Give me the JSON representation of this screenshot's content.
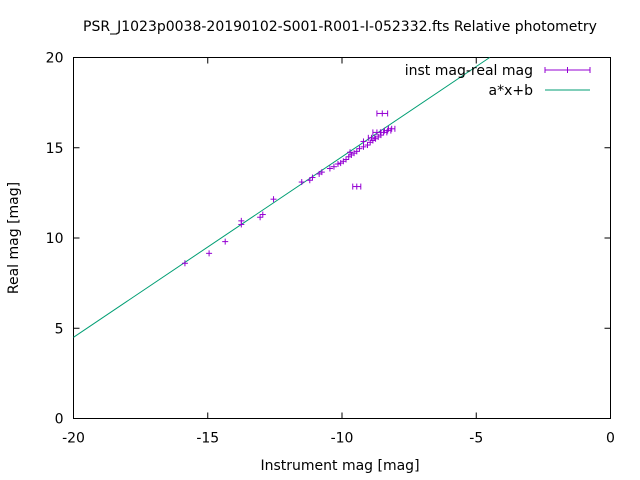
{
  "chart_data": {
    "type": "scatter",
    "title": "PSR_J1023p0038-20190102-S001-R001-I-052332.fts Relative photometry",
    "xlabel": "Instrument mag [mag]",
    "ylabel": "Real mag [mag]",
    "xlim": [
      -20,
      0
    ],
    "ylim": [
      0,
      20
    ],
    "x_ticks": [
      "-20",
      "-15",
      "-10",
      "-5",
      "0"
    ],
    "y_ticks": [
      "0",
      "5",
      "10",
      "15",
      "20"
    ],
    "grid": false,
    "legend_position": "top-right",
    "series": [
      {
        "name": "inst mag-real mag",
        "kind": "points-with-xerrorbars",
        "color": "#9400d3",
        "points": [
          {
            "x": -15.85,
            "y": 8.6,
            "xerr": 0.06
          },
          {
            "x": -14.95,
            "y": 9.15,
            "xerr": 0.06
          },
          {
            "x": -14.35,
            "y": 9.8,
            "xerr": 0.06
          },
          {
            "x": -13.75,
            "y": 10.75,
            "xerr": 0.06
          },
          {
            "x": -13.75,
            "y": 10.95,
            "xerr": 0.06
          },
          {
            "x": -13.05,
            "y": 11.15,
            "xerr": 0.07
          },
          {
            "x": -12.95,
            "y": 11.3,
            "xerr": 0.06
          },
          {
            "x": -12.55,
            "y": 12.15,
            "xerr": 0.06
          },
          {
            "x": -11.5,
            "y": 13.1,
            "xerr": 0.06
          },
          {
            "x": -11.2,
            "y": 13.2,
            "xerr": 0.06
          },
          {
            "x": -11.1,
            "y": 13.35,
            "xerr": 0.06
          },
          {
            "x": -10.85,
            "y": 13.55,
            "xerr": 0.06
          },
          {
            "x": -10.75,
            "y": 13.65,
            "xerr": 0.06
          },
          {
            "x": -10.45,
            "y": 13.85,
            "xerr": 0.07
          },
          {
            "x": -10.3,
            "y": 13.95,
            "xerr": 0.07
          },
          {
            "x": -10.15,
            "y": 14.1,
            "xerr": 0.07
          },
          {
            "x": -10.05,
            "y": 14.15,
            "xerr": 0.07
          },
          {
            "x": -9.95,
            "y": 14.25,
            "xerr": 0.07
          },
          {
            "x": -9.85,
            "y": 14.35,
            "xerr": 0.08
          },
          {
            "x": -9.75,
            "y": 14.5,
            "xerr": 0.08
          },
          {
            "x": -9.65,
            "y": 14.6,
            "xerr": 0.08
          },
          {
            "x": -9.55,
            "y": 14.7,
            "xerr": 0.08
          },
          {
            "x": -9.45,
            "y": 14.8,
            "xerr": 0.08
          },
          {
            "x": -9.35,
            "y": 14.95,
            "xerr": 0.08
          },
          {
            "x": -9.2,
            "y": 15.05,
            "xerr": 0.08
          },
          {
            "x": -9.05,
            "y": 15.15,
            "xerr": 0.09
          },
          {
            "x": -8.95,
            "y": 15.3,
            "xerr": 0.09
          },
          {
            "x": -8.85,
            "y": 15.4,
            "xerr": 0.09
          },
          {
            "x": -8.75,
            "y": 15.5,
            "xerr": 0.1
          },
          {
            "x": -8.65,
            "y": 15.6,
            "xerr": 0.1
          },
          {
            "x": -8.55,
            "y": 15.7,
            "xerr": 0.1
          },
          {
            "x": -8.45,
            "y": 15.85,
            "xerr": 0.12
          },
          {
            "x": -8.3,
            "y": 15.95,
            "xerr": 0.12
          },
          {
            "x": -8.15,
            "y": 16.05,
            "xerr": 0.12
          },
          {
            "x": -9.2,
            "y": 15.35,
            "xerr": 0.1
          },
          {
            "x": -8.7,
            "y": 15.85,
            "xerr": 0.15
          },
          {
            "x": -8.5,
            "y": 16.9,
            "xerr": 0.2
          },
          {
            "x": -9.45,
            "y": 12.85,
            "xerr": 0.15
          },
          {
            "x": -9.7,
            "y": 14.75,
            "xerr": 0.08
          },
          {
            "x": -8.9,
            "y": 15.55,
            "xerr": 0.12
          }
        ]
      },
      {
        "name": "a*x+b",
        "kind": "line",
        "color": "#009e73",
        "slope": 1.0,
        "intercept": 24.5
      }
    ]
  }
}
